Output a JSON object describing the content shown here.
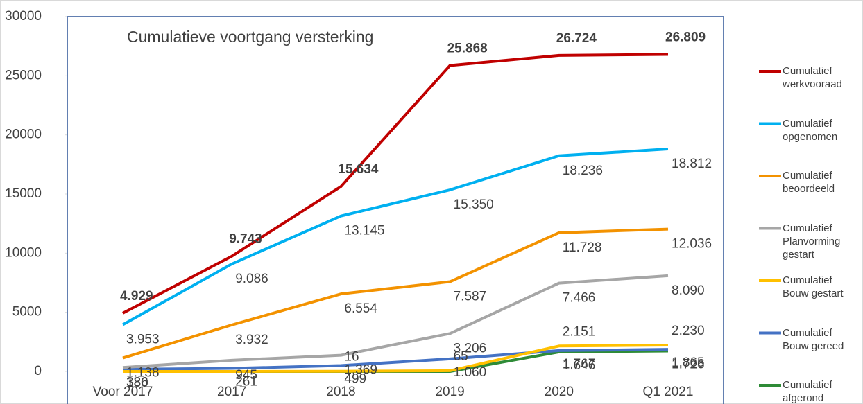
{
  "chart_data": {
    "type": "line",
    "title": "Cumulatieve  voortgang versterking",
    "categories": [
      "Voor 2017",
      "2017",
      "2018",
      "2019",
      "2020",
      "Q1 2021"
    ],
    "ylim": [
      0,
      30000
    ],
    "yticks": [
      0,
      5000,
      10000,
      15000,
      20000,
      25000,
      30000
    ],
    "series": [
      {
        "name": "Cumulatief werkvooraad",
        "color": "#c00000",
        "values": [
          4929,
          9743,
          15634,
          25868,
          26724,
          26809
        ],
        "value_labels": [
          "4.929",
          "9.743",
          "15.634",
          "25.868",
          "26.724",
          "26.809"
        ]
      },
      {
        "name": "Cumulatief opgenomen",
        "color": "#00b0f0",
        "values": [
          3953,
          9086,
          13145,
          15350,
          18236,
          18812
        ],
        "value_labels": [
          "3.953",
          "9.086",
          "13.145",
          "15.350",
          "18.236",
          "18.812"
        ]
      },
      {
        "name": "Cumulatief beoordeeld",
        "color": "#f39200",
        "values": [
          1138,
          3932,
          6554,
          7587,
          11728,
          12036
        ],
        "value_labels": [
          "1.138",
          "3.932",
          "6.554",
          "7.587",
          "11.728",
          "12.036"
        ]
      },
      {
        "name": "Cumulatief Planvorming gestart",
        "color": "#a6a6a6",
        "values": [
          336,
          945,
          1369,
          3206,
          7466,
          8090
        ],
        "value_labels": [
          "336",
          "945",
          "1.369",
          "3.206",
          "7.466",
          "8.090"
        ]
      },
      {
        "name": "Cumulatief Bouw gestart",
        "color": "#ffc000",
        "values": [
          0,
          0,
          16,
          65,
          2151,
          2230
        ],
        "value_labels": [
          null,
          null,
          "16",
          "65",
          "2.151",
          "2.230"
        ]
      },
      {
        "name": "Cumulatief Bouw gereed",
        "color": "#4472c4",
        "values": [
          180,
          261,
          499,
          1060,
          1767,
          1865
        ],
        "value_labels": [
          "180",
          "261",
          "499",
          "1.060",
          "1.767",
          "1.865"
        ]
      },
      {
        "name": "Cumulatief afgerond",
        "color": "#2e8b37",
        "values": [
          0,
          0,
          0,
          0,
          1646,
          1726
        ],
        "value_labels": [
          null,
          null,
          null,
          null,
          "1.646",
          "1.726"
        ]
      }
    ]
  }
}
